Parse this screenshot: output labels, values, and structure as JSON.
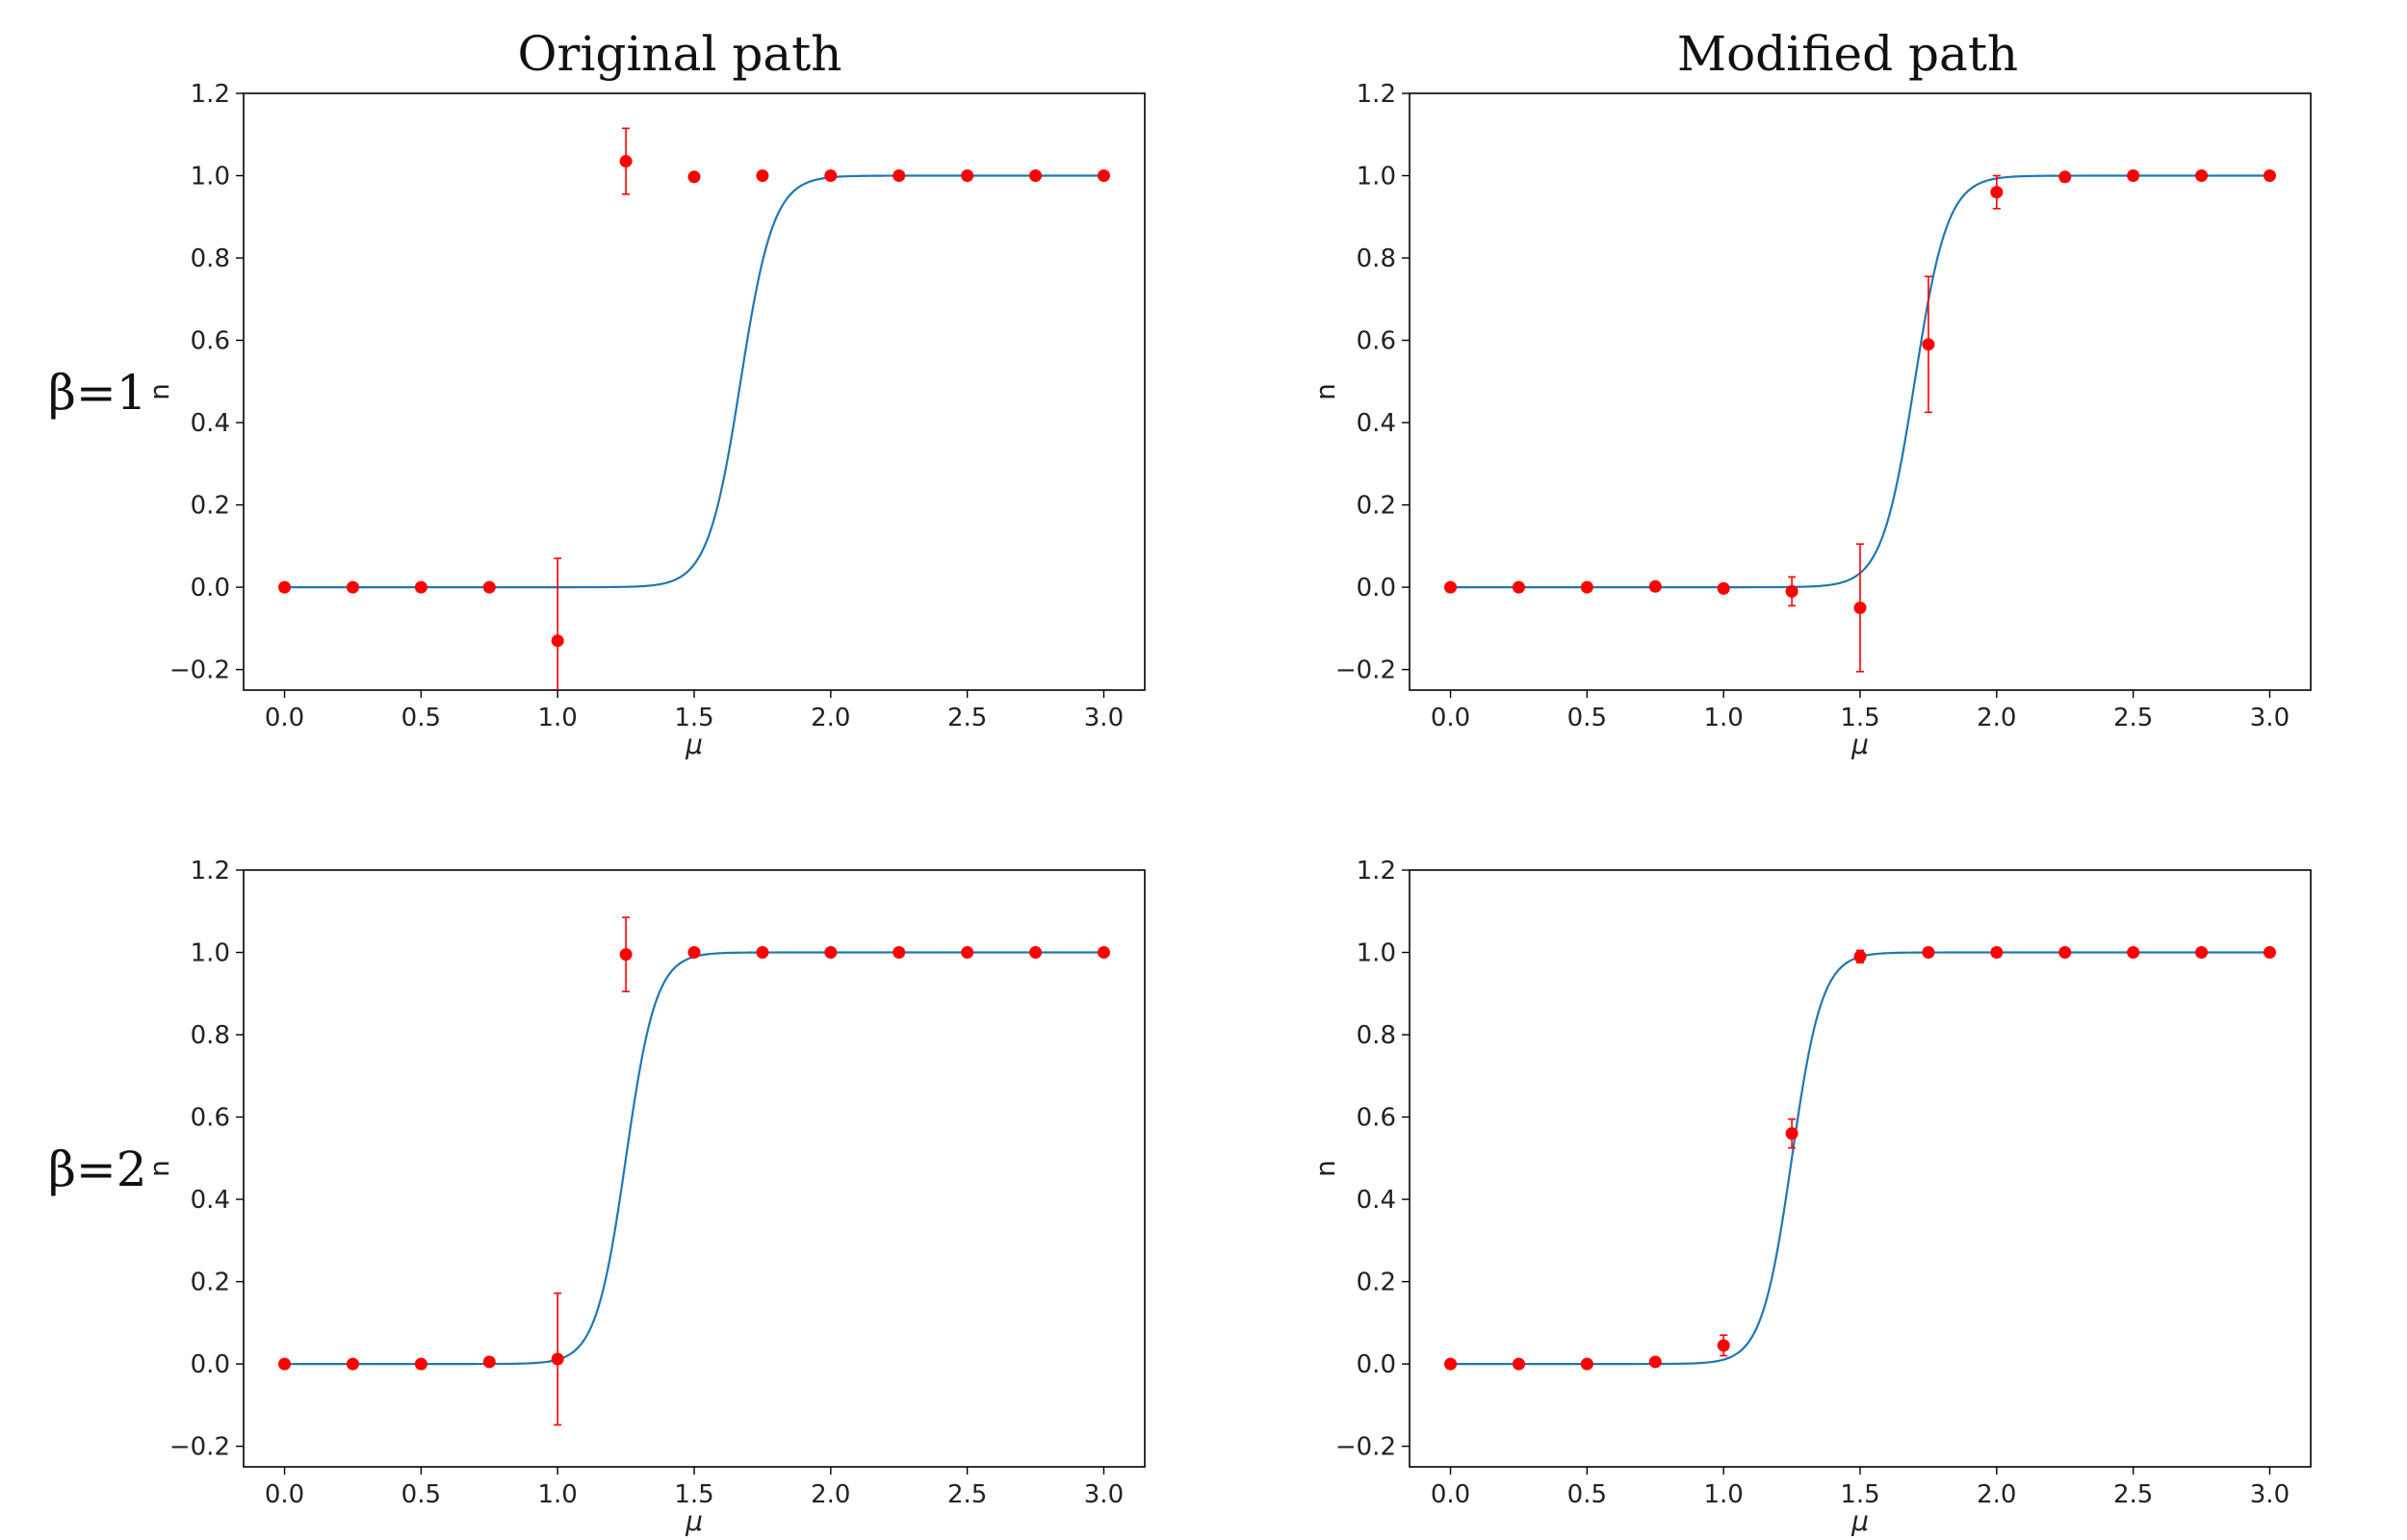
{
  "column_titles": [
    "Original path",
    "Modified path"
  ],
  "row_labels": [
    "β=1",
    "β=2"
  ],
  "colors": {
    "curve": "#1f77b4",
    "points": "#ff0000",
    "axes": "#000000"
  },
  "chart_data": [
    {
      "type": "line",
      "panel": "top-left",
      "title": "",
      "xlabel": "μ",
      "ylabel": "n",
      "xlim": [
        -0.15,
        3.15
      ],
      "ylim": [
        -0.25,
        1.2
      ],
      "xticks": [
        "0.0",
        "0.5",
        "1.0",
        "1.5",
        "2.0",
        "2.5",
        "3.0"
      ],
      "yticks": [
        "−0.2",
        "0.0",
        "0.2",
        "0.4",
        "0.6",
        "0.8",
        "1.0",
        "1.2"
      ],
      "curve": {
        "name": "",
        "shape": "sigmoid",
        "midpoint": 1.67,
        "width": 0.06
      },
      "points": {
        "x": [
          0.0,
          0.25,
          0.5,
          0.75,
          1.0,
          1.25,
          1.5,
          1.75,
          2.0,
          2.25,
          2.5,
          2.75,
          3.0
        ],
        "y": [
          0.0,
          0.0,
          0.0,
          0.0,
          -0.13,
          1.035,
          0.997,
          1.0,
          1.0,
          1.0,
          1.0,
          1.0,
          1.0
        ],
        "yerr": [
          0.0,
          0.0,
          0.0,
          0.0,
          0.2,
          0.08,
          0.0,
          0.0,
          0.0,
          0.0,
          0.0,
          0.0,
          0.0
        ]
      }
    },
    {
      "type": "line",
      "panel": "top-right",
      "title": "",
      "xlabel": "μ",
      "ylabel": "n",
      "xlim": [
        -0.15,
        3.15
      ],
      "ylim": [
        -0.25,
        1.2
      ],
      "xticks": [
        "0.0",
        "0.5",
        "1.0",
        "1.5",
        "2.0",
        "2.5",
        "3.0"
      ],
      "yticks": [
        "−0.2",
        "0.0",
        "0.2",
        "0.4",
        "0.6",
        "0.8",
        "1.0",
        "1.2"
      ],
      "curve": {
        "name": "",
        "shape": "sigmoid",
        "midpoint": 1.7,
        "width": 0.06
      },
      "points": {
        "x": [
          0.0,
          0.25,
          0.5,
          0.75,
          1.0,
          1.25,
          1.5,
          1.75,
          2.0,
          2.25,
          2.5,
          2.75,
          3.0
        ],
        "y": [
          0.0,
          0.0,
          0.0,
          0.002,
          -0.003,
          -0.01,
          -0.05,
          0.59,
          0.96,
          0.997,
          1.0,
          1.0,
          1.0
        ],
        "yerr": [
          0.0,
          0.0,
          0.0,
          0.0,
          0.0,
          0.035,
          0.155,
          0.165,
          0.04,
          0.0,
          0.0,
          0.0,
          0.0
        ]
      }
    },
    {
      "type": "line",
      "panel": "bottom-left",
      "title": "",
      "xlabel": "μ",
      "ylabel": "n",
      "xlim": [
        -0.15,
        3.15
      ],
      "ylim": [
        -0.25,
        1.2
      ],
      "xticks": [
        "0.0",
        "0.5",
        "1.0",
        "1.5",
        "2.0",
        "2.5",
        "3.0"
      ],
      "yticks": [
        "−0.2",
        "0.0",
        "0.2",
        "0.4",
        "0.6",
        "0.8",
        "1.0",
        "1.2"
      ],
      "curve": {
        "name": "",
        "shape": "sigmoid",
        "midpoint": 1.25,
        "width": 0.055
      },
      "points": {
        "x": [
          0.0,
          0.25,
          0.5,
          0.75,
          1.0,
          1.25,
          1.5,
          1.75,
          2.0,
          2.25,
          2.5,
          2.75,
          3.0
        ],
        "y": [
          0.0,
          0.0,
          0.0,
          0.005,
          0.012,
          0.995,
          1.0,
          1.0,
          1.0,
          1.0,
          1.0,
          1.0,
          1.0
        ],
        "yerr": [
          0.0,
          0.0,
          0.0,
          0.0,
          0.16,
          0.09,
          0.0,
          0.0,
          0.0,
          0.0,
          0.0,
          0.0,
          0.0
        ]
      }
    },
    {
      "type": "line",
      "panel": "bottom-right",
      "title": "",
      "xlabel": "μ",
      "ylabel": "n",
      "xlim": [
        -0.15,
        3.15
      ],
      "ylim": [
        -0.25,
        1.2
      ],
      "xticks": [
        "0.0",
        "0.5",
        "1.0",
        "1.5",
        "2.0",
        "2.5",
        "3.0"
      ],
      "yticks": [
        "−0.2",
        "0.0",
        "0.2",
        "0.4",
        "0.6",
        "0.8",
        "1.0",
        "1.2"
      ],
      "curve": {
        "name": "",
        "shape": "sigmoid",
        "midpoint": 1.25,
        "width": 0.055
      },
      "points": {
        "x": [
          0.0,
          0.25,
          0.5,
          0.75,
          1.0,
          1.25,
          1.5,
          1.75,
          2.0,
          2.25,
          2.5,
          2.75,
          3.0
        ],
        "y": [
          0.0,
          0.0,
          0.0,
          0.005,
          0.045,
          0.56,
          0.99,
          1.0,
          1.0,
          1.0,
          1.0,
          1.0,
          1.0
        ],
        "yerr": [
          0.0,
          0.0,
          0.0,
          0.0,
          0.025,
          0.035,
          0.015,
          0.0,
          0.0,
          0.0,
          0.0,
          0.0,
          0.0
        ]
      }
    }
  ]
}
